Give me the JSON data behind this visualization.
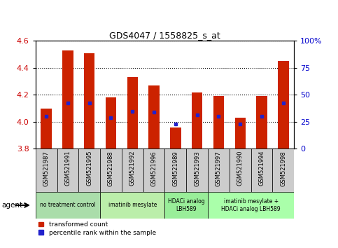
{
  "title": "GDS4047 / 1558825_s_at",
  "samples": [
    "GSM521987",
    "GSM521991",
    "GSM521995",
    "GSM521988",
    "GSM521992",
    "GSM521996",
    "GSM521989",
    "GSM521993",
    "GSM521997",
    "GSM521990",
    "GSM521994",
    "GSM521998"
  ],
  "bar_values": [
    4.1,
    4.53,
    4.51,
    4.18,
    4.33,
    4.27,
    3.96,
    4.22,
    4.19,
    4.03,
    4.19,
    4.45
  ],
  "blue_marker_values": [
    4.04,
    4.14,
    4.14,
    4.03,
    4.08,
    4.07,
    3.985,
    4.05,
    4.04,
    3.985,
    4.04,
    4.14
  ],
  "ymin": 3.8,
  "ymax": 4.6,
  "yticks": [
    3.8,
    4.0,
    4.2,
    4.4,
    4.6
  ],
  "right_yticks": [
    0,
    25,
    50,
    75,
    100
  ],
  "bar_color": "#CC2200",
  "blue_color": "#2222CC",
  "groups": [
    {
      "label": "no treatment control",
      "start": 0,
      "end": 3,
      "bg": "#AADDAA"
    },
    {
      "label": "imatinib mesylate",
      "start": 3,
      "end": 6,
      "bg": "#BBEEAA"
    },
    {
      "label": "HDACi analog\nLBH589",
      "start": 6,
      "end": 8,
      "bg": "#99EE99"
    },
    {
      "label": "imatinib mesylate +\nHDACi analog LBH589",
      "start": 8,
      "end": 12,
      "bg": "#AAFFAA"
    }
  ],
  "bar_width": 0.5,
  "legend_items": [
    {
      "label": "transformed count",
      "color": "#CC2200"
    },
    {
      "label": "percentile rank within the sample",
      "color": "#2222CC"
    }
  ],
  "left_tick_color": "#CC0000",
  "right_axis_color": "#0000CC",
  "sample_bg": "#CCCCCC"
}
